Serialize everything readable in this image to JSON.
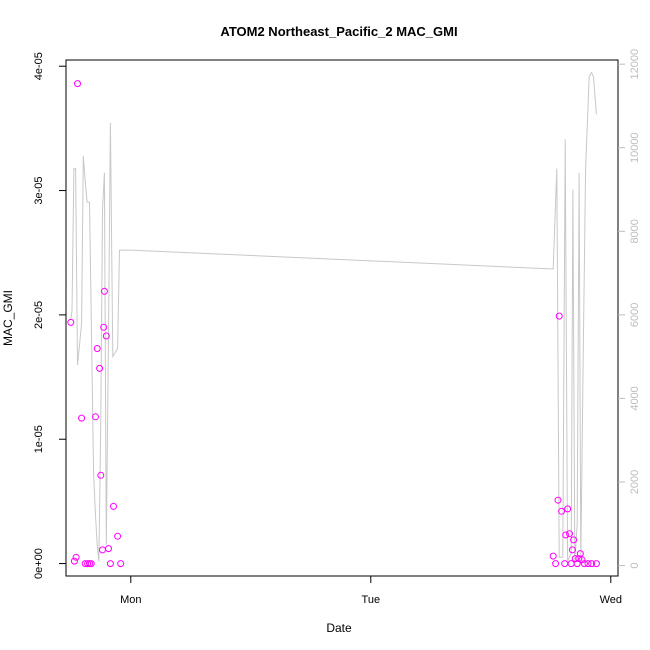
{
  "chart_data": {
    "type": "scatter",
    "title": "ATOM2 Northeast_Pacific_2 MAC_GMI",
    "xlabel": "Date",
    "ylabel": "MAC_GMI",
    "x_ticks": [
      "Mon",
      "Tue",
      "Wed"
    ],
    "x_range_days": [
      -0.27,
      2.03
    ],
    "y_ticks": [
      "0e+00",
      "1e-05",
      "2e-05",
      "3e-05",
      "4e-05"
    ],
    "ylim": [
      -1e-06,
      4.05e-05
    ],
    "y2_ticks": [
      "0",
      "2000",
      "4000",
      "6000",
      "8000",
      "10000",
      "12000"
    ],
    "y2lim": [
      -250,
      12100
    ],
    "grid": false,
    "series": [
      {
        "type": "scatter",
        "color": "#ff00ff",
        "marker": "open-circle",
        "points": [
          {
            "x": -0.25,
            "y": 1.94e-05
          },
          {
            "x": -0.235,
            "y": 2e-07
          },
          {
            "x": -0.228,
            "y": 5e-07
          },
          {
            "x": -0.222,
            "y": 3.86e-05
          },
          {
            "x": -0.205,
            "y": 1.17e-05
          },
          {
            "x": -0.19,
            "y": 0
          },
          {
            "x": -0.18,
            "y": 0
          },
          {
            "x": -0.172,
            "y": 0
          },
          {
            "x": -0.165,
            "y": 0
          },
          {
            "x": -0.147,
            "y": 1.18e-05
          },
          {
            "x": -0.14,
            "y": 1.73e-05
          },
          {
            "x": -0.13,
            "y": 1.57e-05
          },
          {
            "x": -0.125,
            "y": 7.1e-06
          },
          {
            "x": -0.118,
            "y": 1.1e-06
          },
          {
            "x": -0.113,
            "y": 1.9e-05
          },
          {
            "x": -0.11,
            "y": 2.19e-05
          },
          {
            "x": -0.102,
            "y": 1.83e-05
          },
          {
            "x": -0.093,
            "y": 1.2e-06
          },
          {
            "x": -0.085,
            "y": 0
          },
          {
            "x": -0.072,
            "y": 4.6e-06
          },
          {
            "x": -0.055,
            "y": 2.2e-06
          },
          {
            "x": -0.042,
            "y": 0
          },
          {
            "x": 1.76,
            "y": 6e-07
          },
          {
            "x": 1.77,
            "y": 0
          },
          {
            "x": 1.78,
            "y": 5.1e-06
          },
          {
            "x": 1.785,
            "y": 1.99e-05
          },
          {
            "x": 1.795,
            "y": 4.2e-06
          },
          {
            "x": 1.808,
            "y": 0
          },
          {
            "x": 1.812,
            "y": 2.3e-06
          },
          {
            "x": 1.82,
            "y": 4.4e-06
          },
          {
            "x": 1.828,
            "y": 2.4e-06
          },
          {
            "x": 1.835,
            "y": 0
          },
          {
            "x": 1.84,
            "y": 1.1e-06
          },
          {
            "x": 1.845,
            "y": 1.9e-06
          },
          {
            "x": 1.852,
            "y": 4e-07
          },
          {
            "x": 1.86,
            "y": 0
          },
          {
            "x": 1.867,
            "y": 4e-07
          },
          {
            "x": 1.873,
            "y": 8e-07
          },
          {
            "x": 1.88,
            "y": 3e-07
          },
          {
            "x": 1.89,
            "y": 0
          },
          {
            "x": 1.905,
            "y": 0
          },
          {
            "x": 1.92,
            "y": 0
          },
          {
            "x": 1.94,
            "y": 0
          }
        ]
      },
      {
        "type": "line",
        "axis": "right",
        "color": "#c8c8c8",
        "points": [
          {
            "x": -0.25,
            "y": 5900
          },
          {
            "x": -0.245,
            "y": 6100
          },
          {
            "x": -0.237,
            "y": 9500
          },
          {
            "x": -0.23,
            "y": 9500
          },
          {
            "x": -0.222,
            "y": 4800
          },
          {
            "x": -0.215,
            "y": 5200
          },
          {
            "x": -0.205,
            "y": 5800
          },
          {
            "x": -0.198,
            "y": 9800
          },
          {
            "x": -0.19,
            "y": 9200
          },
          {
            "x": -0.182,
            "y": 8700
          },
          {
            "x": -0.172,
            "y": 8700
          },
          {
            "x": -0.165,
            "y": 6000
          },
          {
            "x": -0.155,
            "y": 2200
          },
          {
            "x": -0.147,
            "y": 1200
          },
          {
            "x": -0.14,
            "y": 500
          },
          {
            "x": -0.133,
            "y": 100
          },
          {
            "x": -0.125,
            "y": 3500
          },
          {
            "x": -0.118,
            "y": 8500
          },
          {
            "x": -0.11,
            "y": 9400
          },
          {
            "x": -0.102,
            "y": 500
          },
          {
            "x": -0.093,
            "y": 5500
          },
          {
            "x": -0.085,
            "y": 10600
          },
          {
            "x": -0.075,
            "y": 5000
          },
          {
            "x": -0.065,
            "y": 5100
          },
          {
            "x": -0.055,
            "y": 5200
          },
          {
            "x": -0.047,
            "y": 7550
          },
          {
            "x": 0.0,
            "y": 7550
          },
          {
            "x": 1.75,
            "y": 7100
          },
          {
            "x": 1.76,
            "y": 7100
          },
          {
            "x": 1.775,
            "y": 9500
          },
          {
            "x": 1.785,
            "y": 200
          },
          {
            "x": 1.8,
            "y": 200
          },
          {
            "x": 1.81,
            "y": 10200
          },
          {
            "x": 1.82,
            "y": 100
          },
          {
            "x": 1.835,
            "y": 300
          },
          {
            "x": 1.842,
            "y": 9000
          },
          {
            "x": 1.85,
            "y": 100
          },
          {
            "x": 1.86,
            "y": 1000
          },
          {
            "x": 1.868,
            "y": 9400
          },
          {
            "x": 1.875,
            "y": 100
          },
          {
            "x": 1.885,
            "y": 5000
          },
          {
            "x": 1.895,
            "y": 9500
          },
          {
            "x": 1.91,
            "y": 11700
          },
          {
            "x": 1.92,
            "y": 11800
          },
          {
            "x": 1.928,
            "y": 11700
          },
          {
            "x": 1.94,
            "y": 10800
          }
        ]
      }
    ]
  }
}
